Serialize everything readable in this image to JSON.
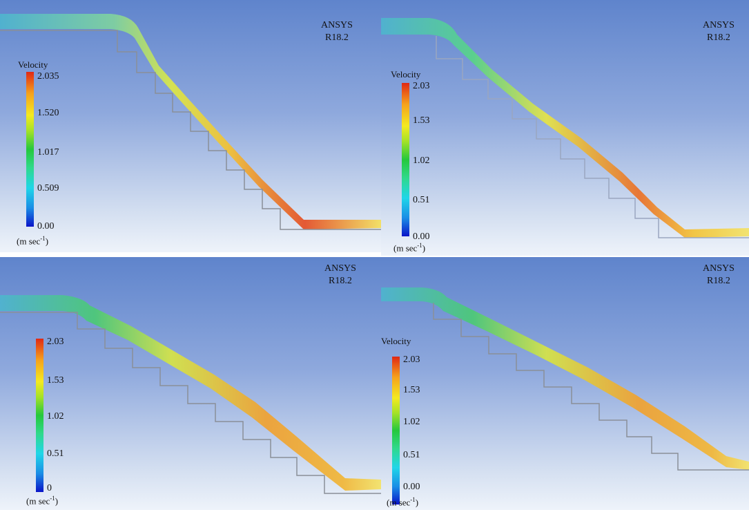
{
  "panels": [
    {
      "watermark": {
        "line1": "ANSYS",
        "line2": "R18.2"
      },
      "legend": {
        "title": "Velocity",
        "ticks": [
          "2.035",
          "1.520",
          "1.017",
          "0.509",
          "0.00"
        ],
        "unit": "(m sec",
        "unit_exp": "-1",
        "unit_close": ")"
      }
    },
    {
      "watermark": {
        "line1": "ANSYS",
        "line2": "R18.2"
      },
      "legend": {
        "title": "Velocity",
        "ticks": [
          "2.03",
          "1.53",
          "1.02",
          "0.51",
          "0.00"
        ],
        "unit": "(m sec",
        "unit_exp": "-1",
        "unit_close": ")"
      }
    },
    {
      "watermark": {
        "line1": "ANSYS",
        "line2": "R18.2"
      },
      "legend": {
        "title": "",
        "ticks": [
          "2.03",
          "1.53",
          "1.02",
          "0.51",
          "0"
        ],
        "unit": "(m sec",
        "unit_exp": "-1",
        "unit_close": ")"
      }
    },
    {
      "watermark": {
        "line1": "ANSYS",
        "line2": "R18.2"
      },
      "legend": {
        "title": "Velocity",
        "ticks": [
          "2.03",
          "1.53",
          "1.02",
          "0.51",
          "0.00"
        ],
        "unit": "(m sec",
        "unit_exp": "-1",
        "unit_close": ")"
      }
    }
  ],
  "colors": {
    "low": "#0a14c8",
    "mid": "#25c83c",
    "high": "#e02814",
    "inflow": "#4fb3cf",
    "step_outline": "#8a8f98"
  }
}
